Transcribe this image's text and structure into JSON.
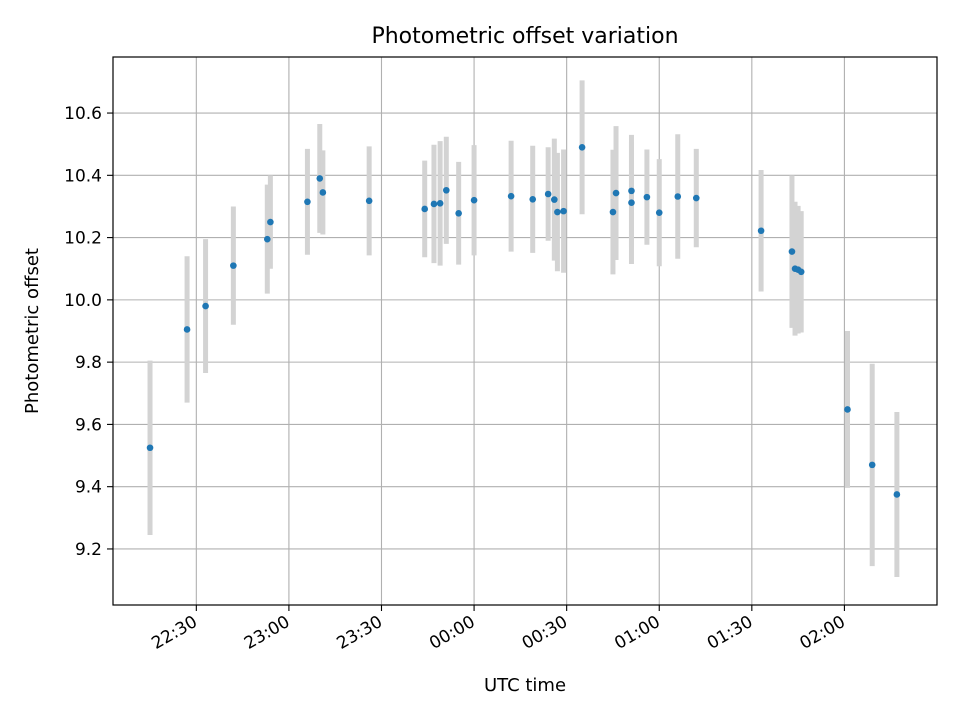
{
  "chart_data": {
    "type": "scatter",
    "title": "Photometric offset variation",
    "xlabel": "UTC time",
    "ylabel": "Photometric offset",
    "xlim": [
      "22:03",
      "02:30"
    ],
    "ylim": [
      9.02,
      10.78
    ],
    "grid": true,
    "colors": {
      "points": "#1f77b4",
      "errorbars": "#d3d3d3"
    },
    "x_ticks": [
      "22:30",
      "23:00",
      "23:30",
      "00:00",
      "00:30",
      "01:00",
      "01:30",
      "02:00"
    ],
    "y_ticks": [
      "9.2",
      "9.4",
      "9.6",
      "9.8",
      "10.0",
      "10.2",
      "10.4",
      "10.6"
    ],
    "points": [
      {
        "x": "22:15",
        "y": 9.525,
        "err": 0.28
      },
      {
        "x": "22:27",
        "y": 9.905,
        "err": 0.235
      },
      {
        "x": "22:33",
        "y": 9.98,
        "err": 0.215
      },
      {
        "x": "22:42",
        "y": 10.11,
        "err": 0.19
      },
      {
        "x": "22:53",
        "y": 10.195,
        "err": 0.175
      },
      {
        "x": "22:54",
        "y": 10.25,
        "err": 0.15
      },
      {
        "x": "23:06",
        "y": 10.315,
        "err": 0.17
      },
      {
        "x": "23:10",
        "y": 10.39,
        "err": 0.175
      },
      {
        "x": "23:11",
        "y": 10.345,
        "err": 0.135
      },
      {
        "x": "23:26",
        "y": 10.318,
        "err": 0.175
      },
      {
        "x": "23:44",
        "y": 10.292,
        "err": 0.155
      },
      {
        "x": "23:47",
        "y": 10.308,
        "err": 0.19
      },
      {
        "x": "23:49",
        "y": 10.31,
        "err": 0.2
      },
      {
        "x": "23:51",
        "y": 10.352,
        "err": 0.172
      },
      {
        "x": "23:55",
        "y": 10.278,
        "err": 0.165
      },
      {
        "x": "00:00",
        "y": 10.32,
        "err": 0.177
      },
      {
        "x": "00:12",
        "y": 10.333,
        "err": 0.178
      },
      {
        "x": "00:19",
        "y": 10.323,
        "err": 0.172
      },
      {
        "x": "00:24",
        "y": 10.34,
        "err": 0.15
      },
      {
        "x": "00:26",
        "y": 10.322,
        "err": 0.196
      },
      {
        "x": "00:27",
        "y": 10.282,
        "err": 0.19
      },
      {
        "x": "00:29",
        "y": 10.285,
        "err": 0.198
      },
      {
        "x": "00:35",
        "y": 10.49,
        "err": 0.215
      },
      {
        "x": "00:45",
        "y": 10.282,
        "err": 0.2
      },
      {
        "x": "00:46",
        "y": 10.343,
        "err": 0.215
      },
      {
        "x": "00:51",
        "y": 10.312,
        "err": 0.197
      },
      {
        "x": "00:51",
        "y": 10.35,
        "err": 0.18
      },
      {
        "x": "00:56",
        "y": 10.33,
        "err": 0.153
      },
      {
        "x": "01:00",
        "y": 10.28,
        "err": 0.172
      },
      {
        "x": "01:06",
        "y": 10.332,
        "err": 0.2
      },
      {
        "x": "01:12",
        "y": 10.327,
        "err": 0.158
      },
      {
        "x": "01:33",
        "y": 10.222,
        "err": 0.195
      },
      {
        "x": "01:43",
        "y": 10.155,
        "err": 0.245
      },
      {
        "x": "01:44",
        "y": 10.1,
        "err": 0.215
      },
      {
        "x": "01:45",
        "y": 10.097,
        "err": 0.205
      },
      {
        "x": "01:46",
        "y": 10.09,
        "err": 0.195
      },
      {
        "x": "02:01",
        "y": 9.648,
        "err": 0.252
      },
      {
        "x": "02:09",
        "y": 9.47,
        "err": 0.325
      },
      {
        "x": "02:17",
        "y": 9.375,
        "err": 0.265
      }
    ]
  }
}
